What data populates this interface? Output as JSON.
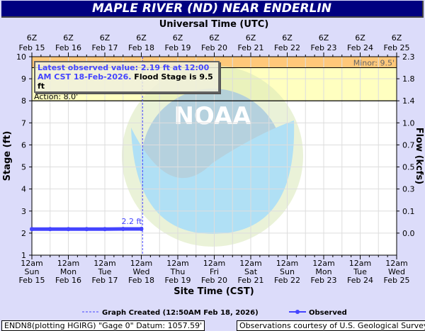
{
  "title": "MAPLE RIVER (ND) NEAR ENDERLIN",
  "latest": {
    "blue": "Latest observed value: 2.19 ft at 12:00 AM CST 18-Feb-2026.",
    "black": " Flood Stage is 9.5 ft"
  },
  "footer": {
    "left": "ENDN8(plotting HGIRG) \"Gage 0\" Datum: 1057.59'",
    "right": "Observations courtesy of U.S. Geological Survey"
  },
  "chart_data": {
    "type": "line",
    "top_axis_label": "Universal Time (UTC)",
    "xlabel": "Site Time (CST)",
    "ylabel": "Stage (ft)",
    "y2label": "Flow (kcfs)",
    "ylim": [
      1,
      10
    ],
    "yticks": [
      1,
      2,
      3,
      4,
      5,
      6,
      7,
      8,
      9,
      10
    ],
    "y2ticks": [
      {
        "stage": 10,
        "label": "2.3"
      },
      {
        "stage": 9,
        "label": "1.8"
      },
      {
        "stage": 8,
        "label": "1.4"
      },
      {
        "stage": 7,
        "label": "1.0"
      },
      {
        "stage": 6,
        "label": "0.7"
      },
      {
        "stage": 5,
        "label": "0.5"
      },
      {
        "stage": 4,
        "label": "0.3"
      },
      {
        "stage": 3,
        "label": "0.1"
      },
      {
        "stage": 2,
        "label": "0.0"
      }
    ],
    "xlim": [
      "2026-02-15T00:00",
      "2026-02-25T00:00"
    ],
    "top_ticks": [
      [
        "6Z",
        "Feb 15"
      ],
      [
        "6Z",
        "Feb 16"
      ],
      [
        "6Z",
        "Feb 17"
      ],
      [
        "6Z",
        "Feb 18"
      ],
      [
        "6Z",
        "Feb 19"
      ],
      [
        "6Z",
        "Feb 20"
      ],
      [
        "6Z",
        "Feb 21"
      ],
      [
        "6Z",
        "Feb 22"
      ],
      [
        "6Z",
        "Feb 23"
      ],
      [
        "6Z",
        "Feb 24"
      ],
      [
        "6Z",
        "Feb 25"
      ]
    ],
    "bottom_ticks": [
      [
        "12am",
        "Sun",
        "Feb 15"
      ],
      [
        "12am",
        "Mon",
        "Feb 16"
      ],
      [
        "12am",
        "Tue",
        "Feb 17"
      ],
      [
        "12am",
        "Wed",
        "Feb 18"
      ],
      [
        "12am",
        "Thu",
        "Feb 19"
      ],
      [
        "12am",
        "Fri",
        "Feb 20"
      ],
      [
        "12am",
        "Sat",
        "Feb 21"
      ],
      [
        "12am",
        "Sun",
        "Feb 22"
      ],
      [
        "12am",
        "Mon",
        "Feb 23"
      ],
      [
        "12am",
        "Tue",
        "Feb 24"
      ],
      [
        "12am",
        "Wed",
        "Feb 25"
      ]
    ],
    "bands": [
      {
        "name": "Minor",
        "from": 9.5,
        "to": 10,
        "color": "#ffc87a",
        "label": "Minor: 9.5'"
      },
      {
        "name": "Action",
        "from": 8,
        "to": 9.5,
        "color": "#ffffc0",
        "label": "Action: 8.0'"
      }
    ],
    "graph_created": {
      "time_days": 3.035,
      "label": "Graph Created (12:50AM Feb 18, 2026)"
    },
    "series": [
      {
        "name": "Observed",
        "color": "#4444ff",
        "x_days": [
          0,
          0.5,
          1,
          1.5,
          2,
          2.5,
          3
        ],
        "values": [
          2.18,
          2.18,
          2.18,
          2.18,
          2.18,
          2.19,
          2.19
        ],
        "end_label": "2.2 ft"
      }
    ],
    "grid": true,
    "legend_position": "bottom"
  }
}
